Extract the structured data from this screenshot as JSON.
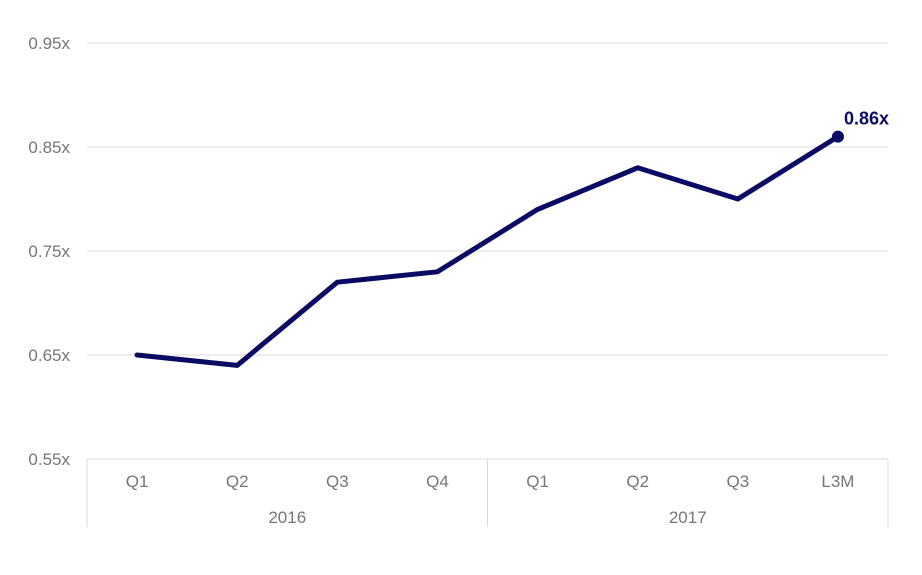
{
  "chart_data": {
    "type": "line",
    "title": "",
    "xlabel": "",
    "ylabel": "",
    "categories": [
      "Q1",
      "Q2",
      "Q3",
      "Q4",
      "Q1",
      "Q2",
      "Q3",
      "L3M"
    ],
    "groups": [
      {
        "label": "2016",
        "start": 0,
        "end": 3
      },
      {
        "label": "2017",
        "start": 4,
        "end": 7
      }
    ],
    "series": [
      {
        "values": [
          0.65,
          0.64,
          0.72,
          0.73,
          0.79,
          0.83,
          0.8,
          0.86
        ]
      }
    ],
    "ylim": [
      0.55,
      0.95
    ],
    "yticks": [
      0.55,
      0.65,
      0.75,
      0.85,
      0.95
    ],
    "ytick_labels": [
      "0.55x",
      "0.65x",
      "0.75x",
      "0.85x",
      "0.95x"
    ],
    "end_label": "0.86x",
    "grid": true,
    "legend": "none",
    "colors": {
      "line": "#0b0b63",
      "grid": "#d9d9d9",
      "text": "#767676"
    }
  }
}
